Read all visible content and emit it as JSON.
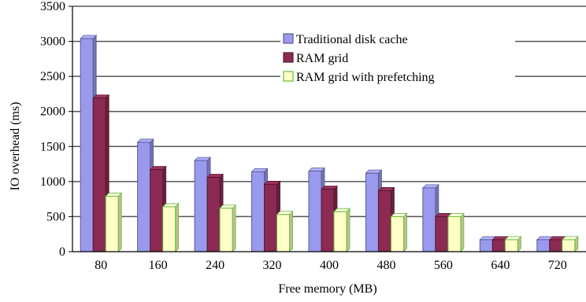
{
  "chart_data": {
    "type": "bar",
    "title": "",
    "xlabel": "Free memory (MB)",
    "ylabel": "IO overhead (ms)",
    "categories": [
      "80",
      "160",
      "240",
      "320",
      "400",
      "480",
      "560",
      "640",
      "720"
    ],
    "ylim": [
      0,
      3500
    ],
    "yticks": [
      0,
      500,
      1000,
      1500,
      2000,
      2500,
      3000,
      3500
    ],
    "grid": true,
    "legend_position": "top-right",
    "series": [
      {
        "name": "Traditional disk cache",
        "color": "#9999ee",
        "values": [
          3040,
          1560,
          1300,
          1140,
          1150,
          1120,
          910,
          170,
          170
        ]
      },
      {
        "name": "RAM grid",
        "color": "#8b2a52",
        "values": [
          2190,
          1170,
          1060,
          960,
          890,
          870,
          500,
          170,
          170
        ]
      },
      {
        "name": "RAM grid with prefetching",
        "color": "#ffffc8",
        "stroke": "#66bb33",
        "values": [
          790,
          640,
          620,
          530,
          570,
          500,
          500,
          170,
          170
        ]
      }
    ]
  }
}
